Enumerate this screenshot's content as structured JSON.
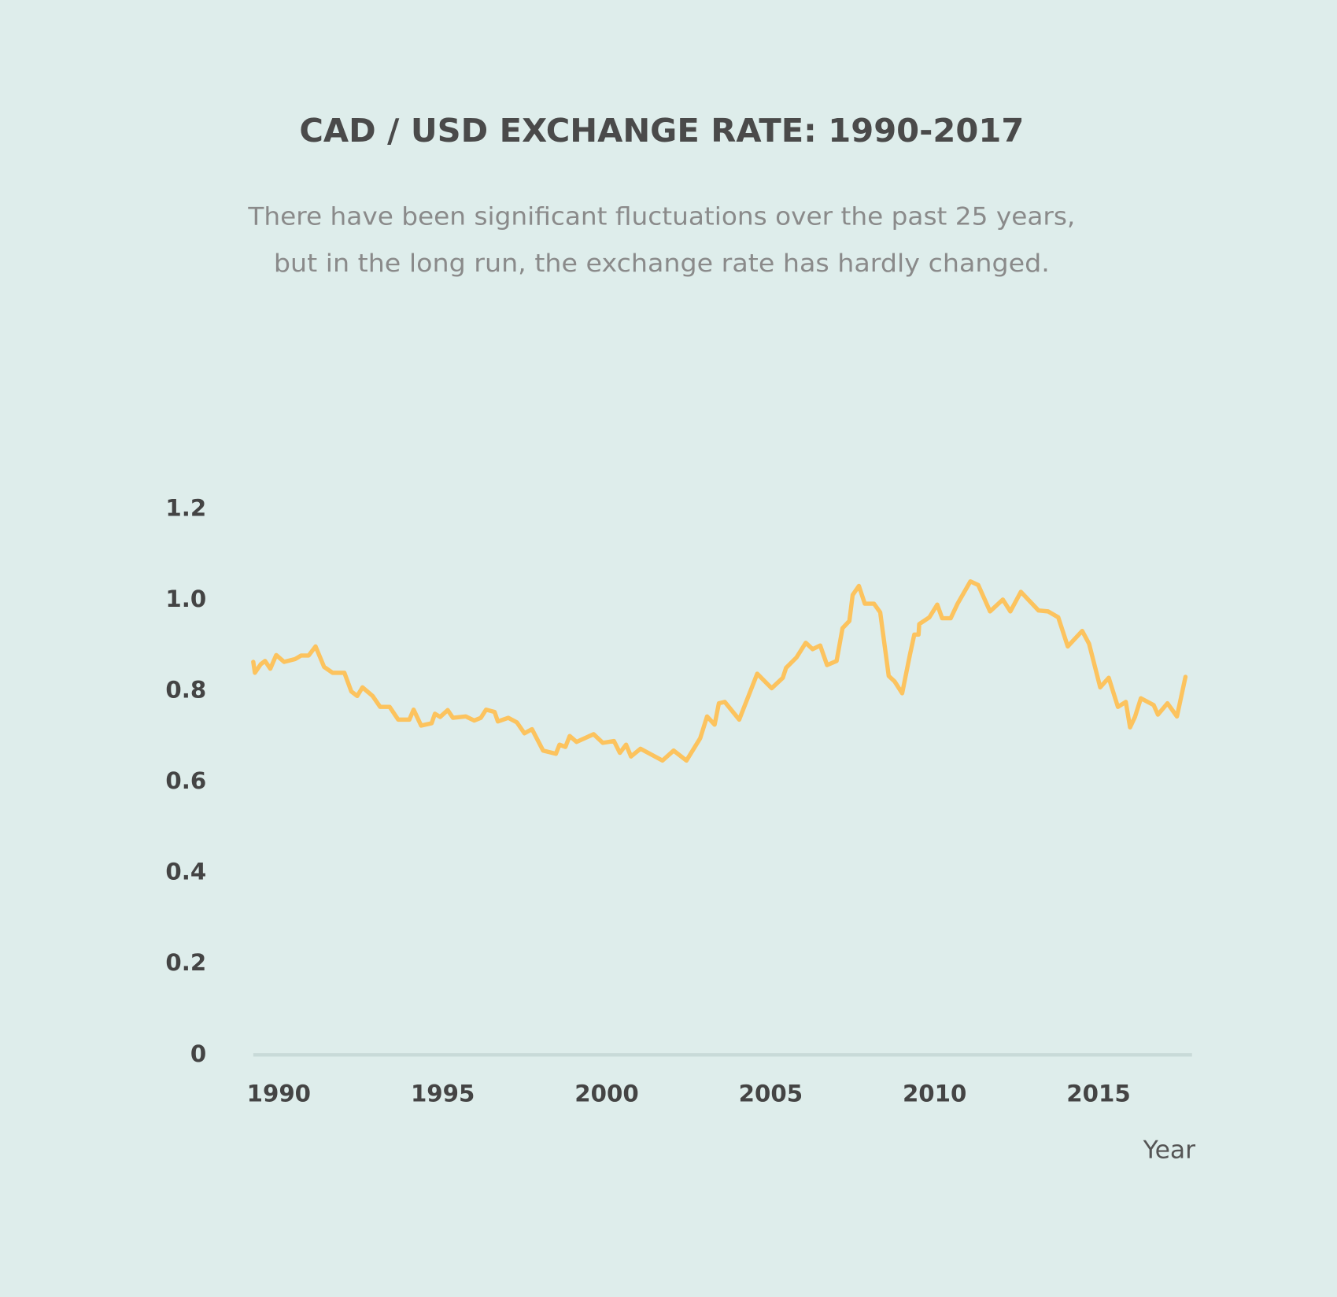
{
  "chart_data": {
    "type": "line",
    "title": "CAD / USD EXCHANGE RATE: 1990-2017",
    "subtitle": [
      "There have been significant fluctuations over the past 25 years,",
      "but in the long run, the exchange rate has hardly changed."
    ],
    "x_label": "Year",
    "xlim": [
      1989.22,
      2017.85
    ],
    "xticks": [
      1990,
      1995,
      2000,
      2005,
      2010,
      2015
    ],
    "ylim": [
      0,
      1.2
    ],
    "yticks": [
      0,
      0.2,
      0.4,
      0.6,
      0.8,
      {
        "value": 1,
        "label": "1.0"
      },
      1.2
    ],
    "grid": false,
    "color": "#fcc35e",
    "x": [
      1989.22,
      1989.27,
      1989.45,
      1989.58,
      1989.74,
      1989.92,
      1990.16,
      1990.49,
      1990.68,
      1990.91,
      1991.12,
      1991.38,
      1991.64,
      1992.0,
      1992.21,
      1992.39,
      1992.55,
      1992.86,
      1993.09,
      1993.38,
      1993.64,
      1993.98,
      1994.11,
      1994.34,
      1994.66,
      1994.76,
      1994.92,
      1995.15,
      1995.31,
      1995.7,
      1995.96,
      1996.16,
      1996.32,
      1996.58,
      1996.68,
      1997.0,
      1997.26,
      1997.49,
      1997.72,
      1998.06,
      1998.45,
      1998.56,
      1998.74,
      1998.87,
      1999.08,
      1999.6,
      1999.88,
      2000.22,
      2000.4,
      2000.59,
      2000.74,
      2001.03,
      2001.7,
      2002.04,
      2002.43,
      2002.85,
      2003.06,
      2003.29,
      2003.42,
      2003.6,
      2004.04,
      2004.59,
      2005.03,
      2005.37,
      2005.47,
      2005.79,
      2006.07,
      2006.28,
      2006.51,
      2006.72,
      2007.01,
      2007.19,
      2007.4,
      2007.5,
      2007.69,
      2007.87,
      2008.15,
      2008.34,
      2008.6,
      2008.78,
      2009.01,
      2009.25,
      2009.38,
      2009.51,
      2009.53,
      2009.84,
      2010.08,
      2010.23,
      2010.49,
      2010.7,
      2011.09,
      2011.33,
      2011.69,
      2012.08,
      2012.31,
      2012.63,
      2013.17,
      2013.46,
      2013.77,
      2014.06,
      2014.5,
      2014.71,
      2015.05,
      2015.31,
      2015.59,
      2015.83,
      2015.96,
      2016.11,
      2016.29,
      2016.68,
      2016.81,
      2017.1,
      2017.39,
      2017.65
    ],
    "values": [
      0.864,
      0.84,
      0.859,
      0.866,
      0.849,
      0.879,
      0.864,
      0.87,
      0.878,
      0.878,
      0.898,
      0.853,
      0.84,
      0.84,
      0.799,
      0.789,
      0.808,
      0.789,
      0.765,
      0.765,
      0.737,
      0.737,
      0.759,
      0.724,
      0.729,
      0.75,
      0.743,
      0.758,
      0.741,
      0.744,
      0.735,
      0.741,
      0.759,
      0.754,
      0.733,
      0.741,
      0.731,
      0.707,
      0.716,
      0.669,
      0.662,
      0.682,
      0.677,
      0.701,
      0.688,
      0.705,
      0.686,
      0.69,
      0.664,
      0.682,
      0.656,
      0.673,
      0.647,
      0.669,
      0.647,
      0.696,
      0.744,
      0.726,
      0.773,
      0.776,
      0.737,
      0.838,
      0.806,
      0.829,
      0.851,
      0.874,
      0.906,
      0.892,
      0.9,
      0.857,
      0.866,
      0.938,
      0.954,
      1.011,
      1.031,
      0.992,
      0.992,
      0.973,
      0.833,
      0.821,
      0.795,
      0.881,
      0.924,
      0.924,
      0.947,
      0.962,
      0.99,
      0.96,
      0.96,
      0.992,
      1.041,
      1.033,
      0.975,
      1.001,
      0.975,
      1.018,
      0.977,
      0.975,
      0.962,
      0.898,
      0.932,
      0.904,
      0.808,
      0.829,
      0.765,
      0.776,
      0.72,
      0.743,
      0.784,
      0.769,
      0.748,
      0.773,
      0.744,
      0.831
    ]
  }
}
